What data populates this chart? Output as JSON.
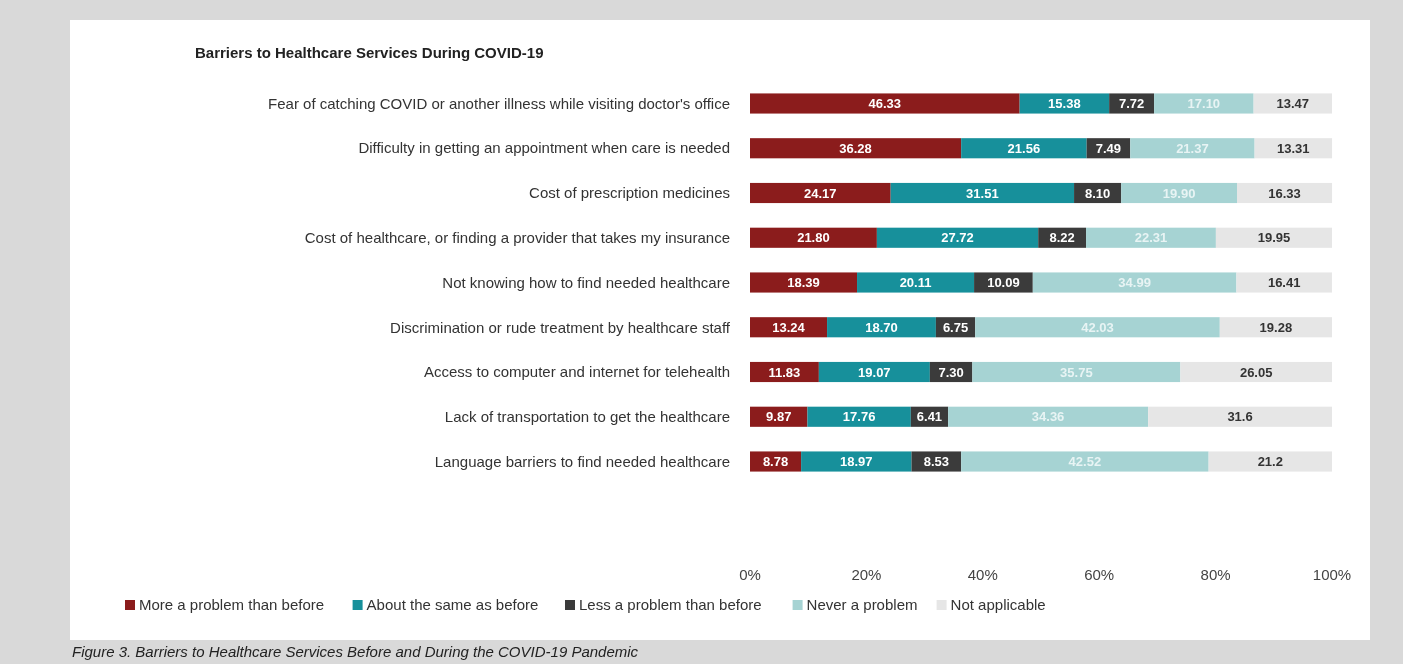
{
  "chart_data": {
    "type": "bar",
    "orientation": "horizontal",
    "stacked": true,
    "title": "Barriers to Healthcare Services During COVID-19",
    "categories": [
      "Fear of catching COVID or another illness while visiting doctor's office",
      "Difficulty in getting an appointment when care is needed",
      "Cost of prescription medicines",
      "Cost of healthcare, or finding a provider that takes my insurance",
      "Not knowing how to find needed healthcare",
      "Discrimination or rude treatment by healthcare staff",
      "Access to computer and internet for telehealth",
      "Lack of transportation to get the healthcare",
      "Language barriers to find needed healthcare"
    ],
    "series": [
      {
        "name": "More a problem than before",
        "color": "#8b1c1c",
        "values": [
          46.33,
          36.28,
          24.17,
          21.8,
          18.39,
          13.24,
          11.83,
          9.87,
          8.78
        ],
        "value_labels": [
          "46.33",
          "36.28",
          "24.17",
          "21.80",
          "18.39",
          "13.24",
          "11.83",
          "9.87",
          "8.78"
        ]
      },
      {
        "name": "About the same as before",
        "color": "#17909b",
        "values": [
          15.38,
          21.56,
          31.51,
          27.72,
          20.11,
          18.7,
          19.07,
          17.76,
          18.97
        ],
        "value_labels": [
          "15.38",
          "21.56",
          "31.51",
          "27.72",
          "20.11",
          "18.70",
          "19.07",
          "17.76",
          "18.97"
        ]
      },
      {
        "name": "Less a problem than before",
        "color": "#3b3b3b",
        "values": [
          7.72,
          7.49,
          8.1,
          8.22,
          10.09,
          6.75,
          7.3,
          6.41,
          8.53
        ],
        "value_labels": [
          "7.72",
          "7.49",
          "8.10",
          "8.22",
          "10.09",
          "6.75",
          "7.30",
          "6.41",
          "8.53"
        ]
      },
      {
        "name": "Never a problem",
        "color": "#a6d3d3",
        "values": [
          17.1,
          21.37,
          19.9,
          22.31,
          34.99,
          42.03,
          35.75,
          34.36,
          42.52
        ],
        "value_labels": [
          "17.10",
          "21.37",
          "19.90",
          "22.31",
          "34.99",
          "42.03",
          "35.75",
          "34.36",
          "42.52"
        ]
      },
      {
        "name": "Not applicable",
        "color": "#e6e6e6",
        "values": [
          13.47,
          13.31,
          16.33,
          19.95,
          16.41,
          19.28,
          26.05,
          31.6,
          21.2
        ],
        "value_labels": [
          "13.47",
          "13.31",
          "16.33",
          "19.95",
          "16.41",
          "19.28",
          "26.05",
          "31.6",
          "21.2"
        ]
      }
    ],
    "xlim": [
      0,
      100
    ],
    "xticks": [
      {
        "value": 0,
        "label": "0%"
      },
      {
        "value": 20,
        "label": "20%"
      },
      {
        "value": 40,
        "label": "40%"
      },
      {
        "value": 60,
        "label": "60%"
      },
      {
        "value": 80,
        "label": "80%"
      },
      {
        "value": 100,
        "label": "100%"
      }
    ],
    "legend": "bottom",
    "grid": false,
    "annotations": [
      "Figure 3. Barriers to Healthcare Services Before and During the COVID-19 Pandemic"
    ]
  }
}
